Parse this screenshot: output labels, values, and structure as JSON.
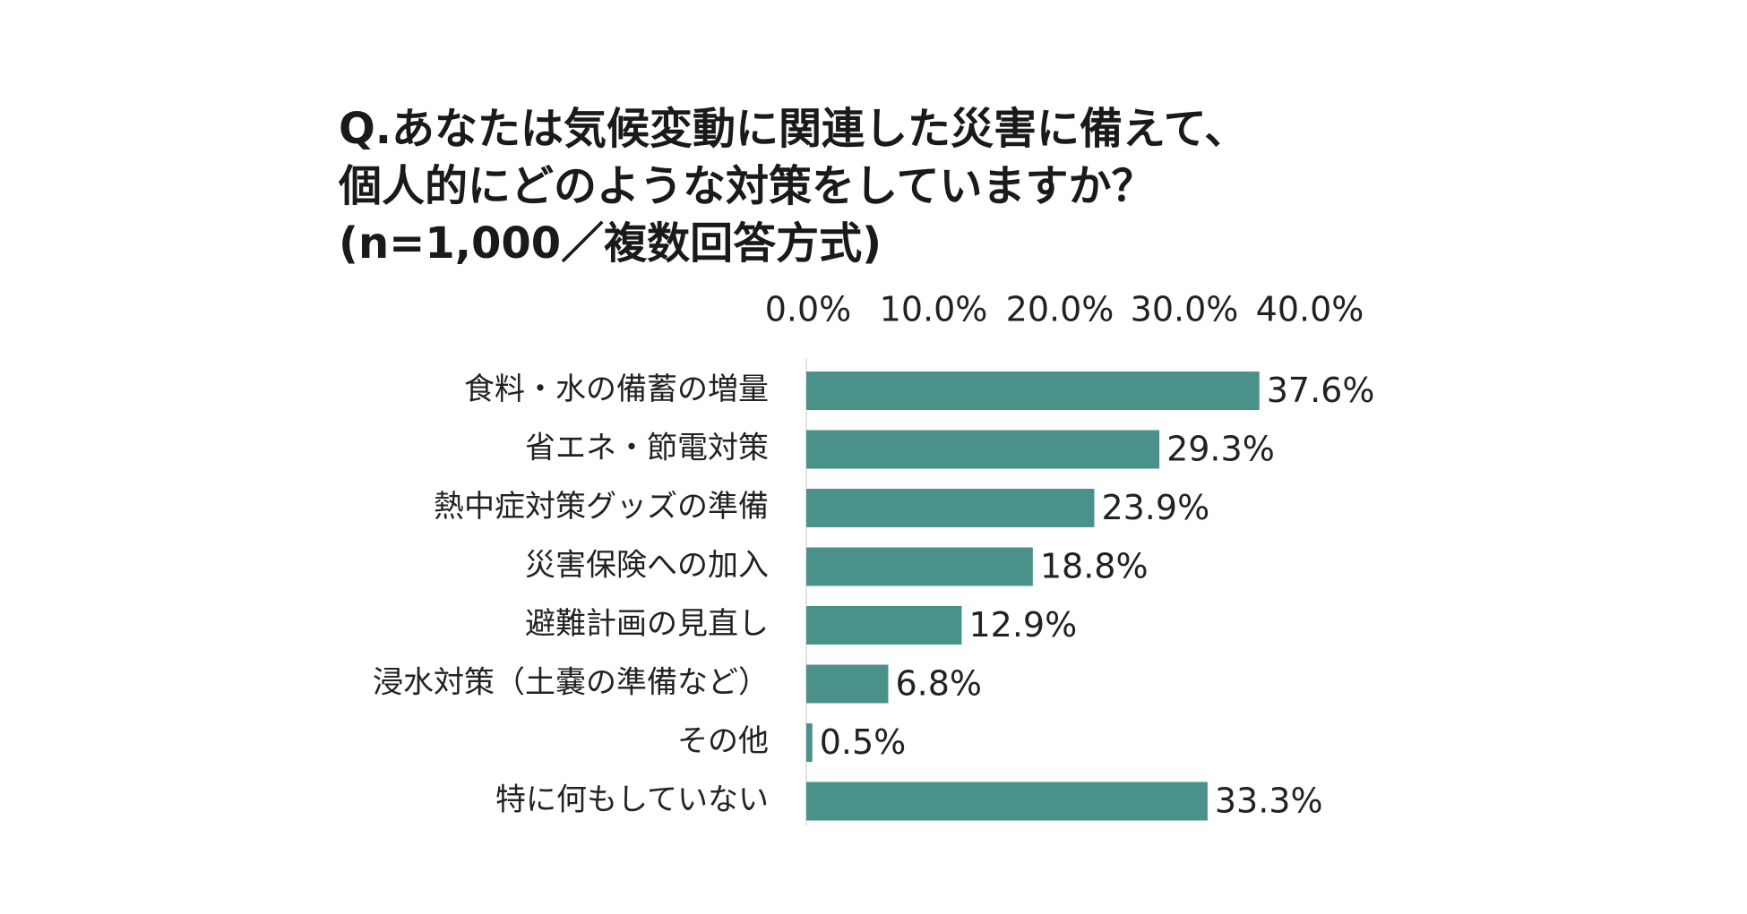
{
  "title": {
    "line1": "Q.あなたは気候変動に関連した災害に備えて、",
    "line2": "個人的にどのような対策をしていますか？",
    "line3": "(n=1,000／複数回答方式)"
  },
  "colors": {
    "bar": "#4a9189",
    "axis": "#d9d9d9",
    "text": "#222222"
  },
  "chart_data": {
    "type": "bar",
    "orientation": "horizontal",
    "title": "Q.あなたは気候変動に関連した災害に備えて、個人的にどのような対策をしていますか？(n=1,000／複数回答方式)",
    "xlabel": "",
    "ylabel": "",
    "xlim": [
      0,
      40
    ],
    "x_axis_position": "top",
    "grid": false,
    "ticks": [
      {
        "value": 0,
        "label": "0.0%"
      },
      {
        "value": 10,
        "label": "10.0%"
      },
      {
        "value": 20,
        "label": "20.0%"
      },
      {
        "value": 30,
        "label": "30.0%"
      },
      {
        "value": 40,
        "label": "40.0%"
      }
    ],
    "categories": [
      "食料・水の備蓄の増量",
      "省エネ・節電対策",
      "熱中症対策グッズの準備",
      "災害保険への加入",
      "避難計画の見直し",
      "浸水対策（土嚢の準備など）",
      "その他",
      "特に何もしていない"
    ],
    "values": [
      37.6,
      29.3,
      23.9,
      18.8,
      12.9,
      6.8,
      0.5,
      33.3
    ],
    "value_labels": [
      "37.6%",
      "29.3%",
      "23.9%",
      "18.8%",
      "12.9%",
      "6.8%",
      "0.5%",
      "33.3%"
    ]
  }
}
